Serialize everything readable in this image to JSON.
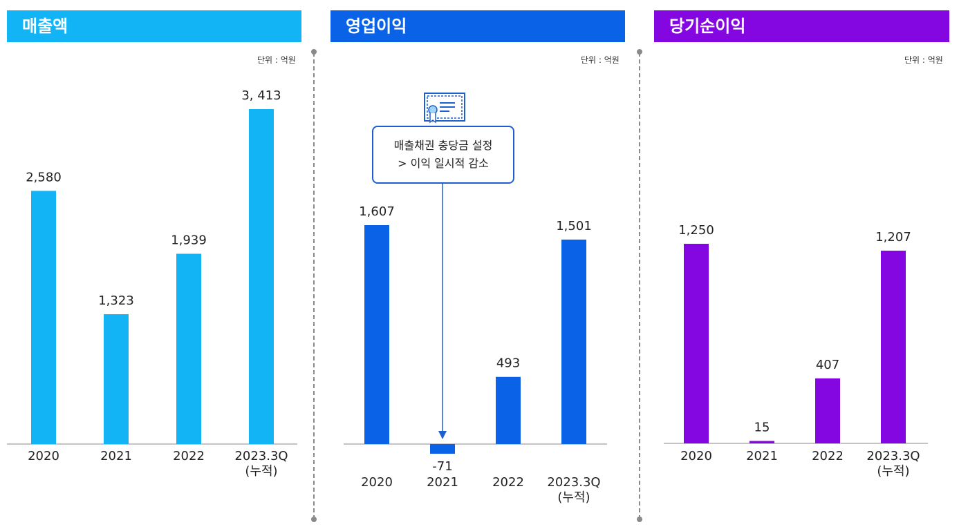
{
  "panels": [
    {
      "title": "매출액",
      "unit": "단위 : 억원",
      "color": "#12B4F5"
    },
    {
      "title": "영업이익",
      "unit": "단위 : 억원",
      "color": "#0A63E6"
    },
    {
      "title": "당기순이익",
      "unit": "단위 : 억원",
      "color": "#8406E0"
    }
  ],
  "callout": {
    "line1": "매출채권 충당금 설정",
    "line2": "> 이익 일시적 감소",
    "icon": "certificate-icon"
  },
  "chart_data": [
    {
      "type": "bar",
      "title": "매출액",
      "unit": "단위 : 억원",
      "categories": [
        "2020",
        "2021",
        "2022",
        "2023.3Q\n(누적)"
      ],
      "values": [
        2580,
        1323,
        1939,
        3413
      ],
      "labels": [
        "2,580",
        "1,323",
        "1,939",
        "3, 413"
      ]
    },
    {
      "type": "bar",
      "title": "영업이익",
      "unit": "단위 : 억원",
      "categories": [
        "2020",
        "2021",
        "2022",
        "2023.3Q\n(누적)"
      ],
      "values": [
        1607,
        -71,
        493,
        1501
      ],
      "labels": [
        "1,607",
        "-71",
        "493",
        "1,501"
      ]
    },
    {
      "type": "bar",
      "title": "당기순이익",
      "unit": "단위 : 억원",
      "categories": [
        "2020",
        "2021",
        "2022",
        "2023.3Q\n(누적)"
      ],
      "values": [
        1250,
        15,
        407,
        1207
      ],
      "labels": [
        "1,250",
        "15",
        "407",
        "1,207"
      ]
    }
  ]
}
